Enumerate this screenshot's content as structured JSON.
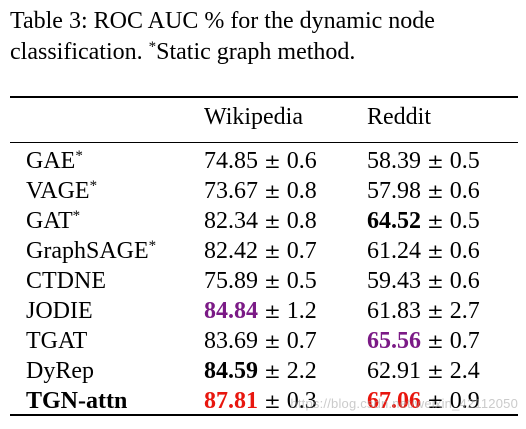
{
  "caption": {
    "prefix": "Table 3: ROC AUC % for the dynamic node classification.",
    "note_marker": "*",
    "note_text": "Static graph method."
  },
  "header": {
    "col1": "",
    "col2": "Wikipedia",
    "col3": "Reddit"
  },
  "pm_symbol": "±",
  "colors": {
    "best": "#e8160e",
    "second": "#7b1a86",
    "default": "#000000"
  },
  "rows": [
    {
      "method": "GAE",
      "static": true,
      "bold_name": false,
      "wiki_mean": "74.85",
      "wiki_std": "0.6",
      "wiki_style": "normal",
      "reddit_mean": "58.39",
      "reddit_std": "0.5",
      "reddit_style": "normal"
    },
    {
      "method": "VAGE",
      "static": true,
      "bold_name": false,
      "wiki_mean": "73.67",
      "wiki_std": "0.8",
      "wiki_style": "normal",
      "reddit_mean": "57.98",
      "reddit_std": "0.6",
      "reddit_style": "normal"
    },
    {
      "method": "GAT",
      "static": true,
      "bold_name": false,
      "wiki_mean": "82.34",
      "wiki_std": "0.8",
      "wiki_style": "normal",
      "reddit_mean": "64.52",
      "reddit_std": "0.5",
      "reddit_style": "bold"
    },
    {
      "method": "GraphSAGE",
      "static": true,
      "bold_name": false,
      "wiki_mean": "82.42",
      "wiki_std": "0.7",
      "wiki_style": "normal",
      "reddit_mean": "61.24",
      "reddit_std": "0.6",
      "reddit_style": "normal"
    },
    {
      "method": "CTDNE",
      "static": false,
      "bold_name": false,
      "wiki_mean": "75.89",
      "wiki_std": "0.5",
      "wiki_style": "normal",
      "reddit_mean": "59.43",
      "reddit_std": "0.6",
      "reddit_style": "normal"
    },
    {
      "method": "JODIE",
      "static": false,
      "bold_name": false,
      "wiki_mean": "84.84",
      "wiki_std": "1.2",
      "wiki_style": "second",
      "reddit_mean": "61.83",
      "reddit_std": "2.7",
      "reddit_style": "normal"
    },
    {
      "method": "TGAT",
      "static": false,
      "bold_name": false,
      "wiki_mean": "83.69",
      "wiki_std": "0.7",
      "wiki_style": "normal",
      "reddit_mean": "65.56",
      "reddit_std": "0.7",
      "reddit_style": "second"
    },
    {
      "method": "DyRep",
      "static": false,
      "bold_name": false,
      "wiki_mean": "84.59",
      "wiki_std": "2.2",
      "wiki_style": "bold",
      "reddit_mean": "62.91",
      "reddit_std": "2.4",
      "reddit_style": "normal"
    },
    {
      "method": "TGN-attn",
      "static": false,
      "bold_name": true,
      "wiki_mean": "87.81",
      "wiki_std": "0.3",
      "wiki_style": "best",
      "reddit_mean": "67.06",
      "reddit_std": "0.9",
      "reddit_style": "best"
    }
  ],
  "watermark": "https://blog.csdn.net/weixin_42112050"
}
